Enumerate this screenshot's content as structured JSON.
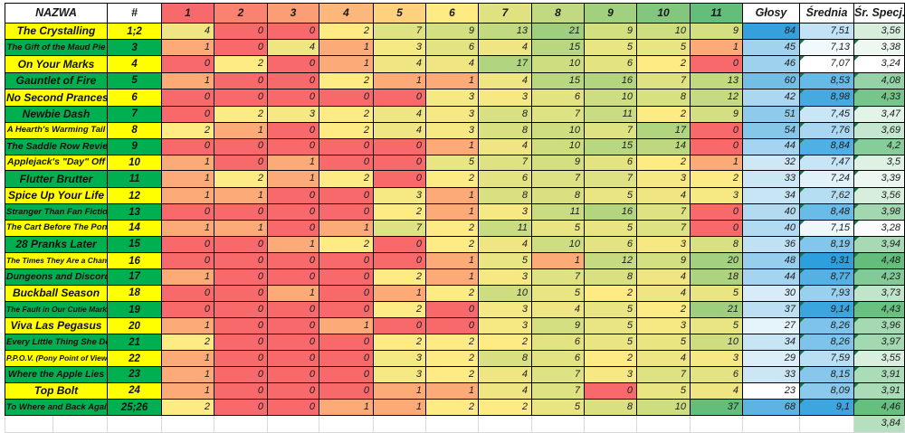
{
  "header": {
    "name": "NAZWA",
    "number": "#",
    "ratings": [
      "1",
      "2",
      "3",
      "4",
      "5",
      "6",
      "7",
      "8",
      "9",
      "10",
      "11"
    ],
    "votes": "Głosy",
    "average": "Średnia",
    "special": "Śr. Specj."
  },
  "rows": [
    {
      "name": "The Crystalling",
      "ep": "1;2",
      "counts": [
        4,
        0,
        0,
        2,
        7,
        9,
        13,
        21,
        9,
        10,
        9
      ],
      "votes": 84,
      "avg": "7,51",
      "spec": "3,56"
    },
    {
      "name": "The Gift of the Maud Pie",
      "ep": "3",
      "counts": [
        1,
        0,
        4,
        1,
        3,
        6,
        4,
        15,
        5,
        5,
        1
      ],
      "votes": 45,
      "avg": "7,13",
      "spec": "3,38"
    },
    {
      "name": "On Your Marks",
      "ep": "4",
      "counts": [
        0,
        2,
        0,
        1,
        4,
        4,
        17,
        10,
        6,
        2,
        0
      ],
      "votes": 46,
      "avg": "7,07",
      "spec": "3,24"
    },
    {
      "name": "Gauntlet of Fire",
      "ep": "5",
      "counts": [
        1,
        0,
        0,
        2,
        1,
        1,
        4,
        15,
        16,
        7,
        13
      ],
      "votes": 60,
      "avg": "8,53",
      "spec": "4,08"
    },
    {
      "name": "No Second Prances",
      "ep": "6",
      "counts": [
        0,
        0,
        0,
        0,
        0,
        3,
        3,
        6,
        10,
        8,
        12
      ],
      "votes": 42,
      "avg": "8,98",
      "spec": "4,33"
    },
    {
      "name": "Newbie Dash",
      "ep": "7",
      "counts": [
        0,
        2,
        3,
        2,
        4,
        3,
        8,
        7,
        11,
        2,
        9
      ],
      "votes": 51,
      "avg": "7,45",
      "spec": "3,47"
    },
    {
      "name": "A Hearth's Warming Tail",
      "ep": "8",
      "counts": [
        2,
        1,
        0,
        2,
        4,
        3,
        8,
        10,
        7,
        17,
        0
      ],
      "votes": 54,
      "avg": "7,76",
      "spec": "3,69"
    },
    {
      "name": "The Saddle Row Review",
      "ep": "9",
      "counts": [
        0,
        0,
        0,
        0,
        0,
        1,
        4,
        10,
        15,
        14,
        0
      ],
      "votes": 44,
      "avg": "8,84",
      "spec": "4,2"
    },
    {
      "name": "Applejack's \"Day\" Off",
      "ep": "10",
      "counts": [
        1,
        0,
        1,
        0,
        0,
        5,
        7,
        9,
        6,
        2,
        1
      ],
      "votes": 32,
      "avg": "7,47",
      "spec": "3,5"
    },
    {
      "name": "Flutter Brutter",
      "ep": "11",
      "counts": [
        1,
        2,
        1,
        2,
        0,
        2,
        6,
        7,
        7,
        3,
        2
      ],
      "votes": 33,
      "avg": "7,24",
      "spec": "3,39"
    },
    {
      "name": "Spice Up Your Life",
      "ep": "12",
      "counts": [
        1,
        1,
        0,
        0,
        3,
        1,
        8,
        8,
        5,
        4,
        3
      ],
      "votes": 34,
      "avg": "7,62",
      "spec": "3,56"
    },
    {
      "name": "Stranger Than Fan Fiction",
      "ep": "13",
      "counts": [
        0,
        0,
        0,
        0,
        2,
        1,
        3,
        11,
        16,
        7,
        0
      ],
      "votes": 40,
      "avg": "8,48",
      "spec": "3,98"
    },
    {
      "name": "The Cart Before The Ponies",
      "ep": "14",
      "counts": [
        1,
        1,
        0,
        1,
        7,
        2,
        11,
        5,
        5,
        7,
        0
      ],
      "votes": 40,
      "avg": "7,15",
      "spec": "3,28"
    },
    {
      "name": "28 Pranks Later",
      "ep": "15",
      "counts": [
        0,
        0,
        1,
        2,
        0,
        2,
        4,
        10,
        6,
        3,
        8
      ],
      "votes": 36,
      "avg": "8,19",
      "spec": "3,94"
    },
    {
      "name": "The Times They Are a Changeling",
      "ep": "16",
      "counts": [
        0,
        0,
        0,
        0,
        0,
        1,
        5,
        1,
        12,
        9,
        20
      ],
      "votes": 48,
      "avg": "9,31",
      "spec": "4,48"
    },
    {
      "name": "Dungeons and Discords",
      "ep": "17",
      "counts": [
        1,
        0,
        0,
        0,
        2,
        1,
        3,
        7,
        8,
        4,
        18
      ],
      "votes": 44,
      "avg": "8,77",
      "spec": "4,23"
    },
    {
      "name": "Buckball Season",
      "ep": "18",
      "counts": [
        0,
        0,
        1,
        0,
        1,
        2,
        10,
        5,
        2,
        4,
        5
      ],
      "votes": 30,
      "avg": "7,93",
      "spec": "3,73"
    },
    {
      "name": "The Fault in Our Cutie Marks",
      "ep": "19",
      "counts": [
        0,
        0,
        0,
        0,
        2,
        0,
        3,
        4,
        5,
        2,
        21
      ],
      "votes": 37,
      "avg": "9,14",
      "spec": "4,43"
    },
    {
      "name": "Viva Las Pegasus",
      "ep": "20",
      "counts": [
        1,
        0,
        0,
        1,
        0,
        0,
        3,
        9,
        5,
        3,
        5
      ],
      "votes": 27,
      "avg": "8,26",
      "spec": "3,96"
    },
    {
      "name": "Every Little Thing She Does",
      "ep": "21",
      "counts": [
        2,
        0,
        0,
        0,
        2,
        2,
        2,
        6,
        5,
        5,
        10
      ],
      "votes": 34,
      "avg": "8,26",
      "spec": "3,97"
    },
    {
      "name": "P.P.O.V. (Pony Point of View)",
      "ep": "22",
      "counts": [
        1,
        0,
        0,
        0,
        3,
        2,
        8,
        6,
        2,
        4,
        3
      ],
      "votes": 29,
      "avg": "7,59",
      "spec": "3,55"
    },
    {
      "name": "Where the Apple Lies",
      "ep": "23",
      "counts": [
        1,
        0,
        0,
        0,
        3,
        2,
        4,
        7,
        3,
        7,
        6
      ],
      "votes": 33,
      "avg": "8,15",
      "spec": "3,91"
    },
    {
      "name": "Top Bolt",
      "ep": "24",
      "counts": [
        1,
        0,
        0,
        0,
        1,
        1,
        4,
        7,
        0,
        5,
        4
      ],
      "votes": 23,
      "avg": "8,09",
      "spec": "3,91"
    },
    {
      "name": "To Where and Back Again",
      "ep": "25;26",
      "counts": [
        2,
        0,
        0,
        1,
        1,
        2,
        2,
        5,
        8,
        10,
        37
      ],
      "votes": 68,
      "avg": "9,1",
      "spec": "4,46"
    }
  ],
  "footer": {
    "spec_total": "3,84"
  },
  "colors": {
    "band_yellow": "#FFFF00",
    "band_green": "#00B050",
    "cell_scale": {
      "min": 0,
      "mid": 2,
      "max": 37,
      "min_color": "#F8696B",
      "mid_color": "#FFEB84",
      "max_color": "#63BE7B",
      "green_gamma": 0.8
    },
    "header_scale": {
      "min": 1,
      "mid": 6,
      "max": 11,
      "min_color": "#F8696B",
      "mid_color": "#FFEB84",
      "max_color": "#63BE7B",
      "green_gamma": 1
    },
    "votes_scale": {
      "min": 23,
      "max": 84,
      "color": "#35A0DB",
      "gamma": 0.75
    },
    "avg_scale": {
      "min": 7.07,
      "max": 9.31,
      "color": "#2E9FDD",
      "gamma": 0.75
    },
    "spec_scale": {
      "min": 3.24,
      "max": 4.48,
      "color": "#63BE7B",
      "gamma": 1
    },
    "flag_color": "#1E7145",
    "ghost_line": "#D9D9D9"
  }
}
